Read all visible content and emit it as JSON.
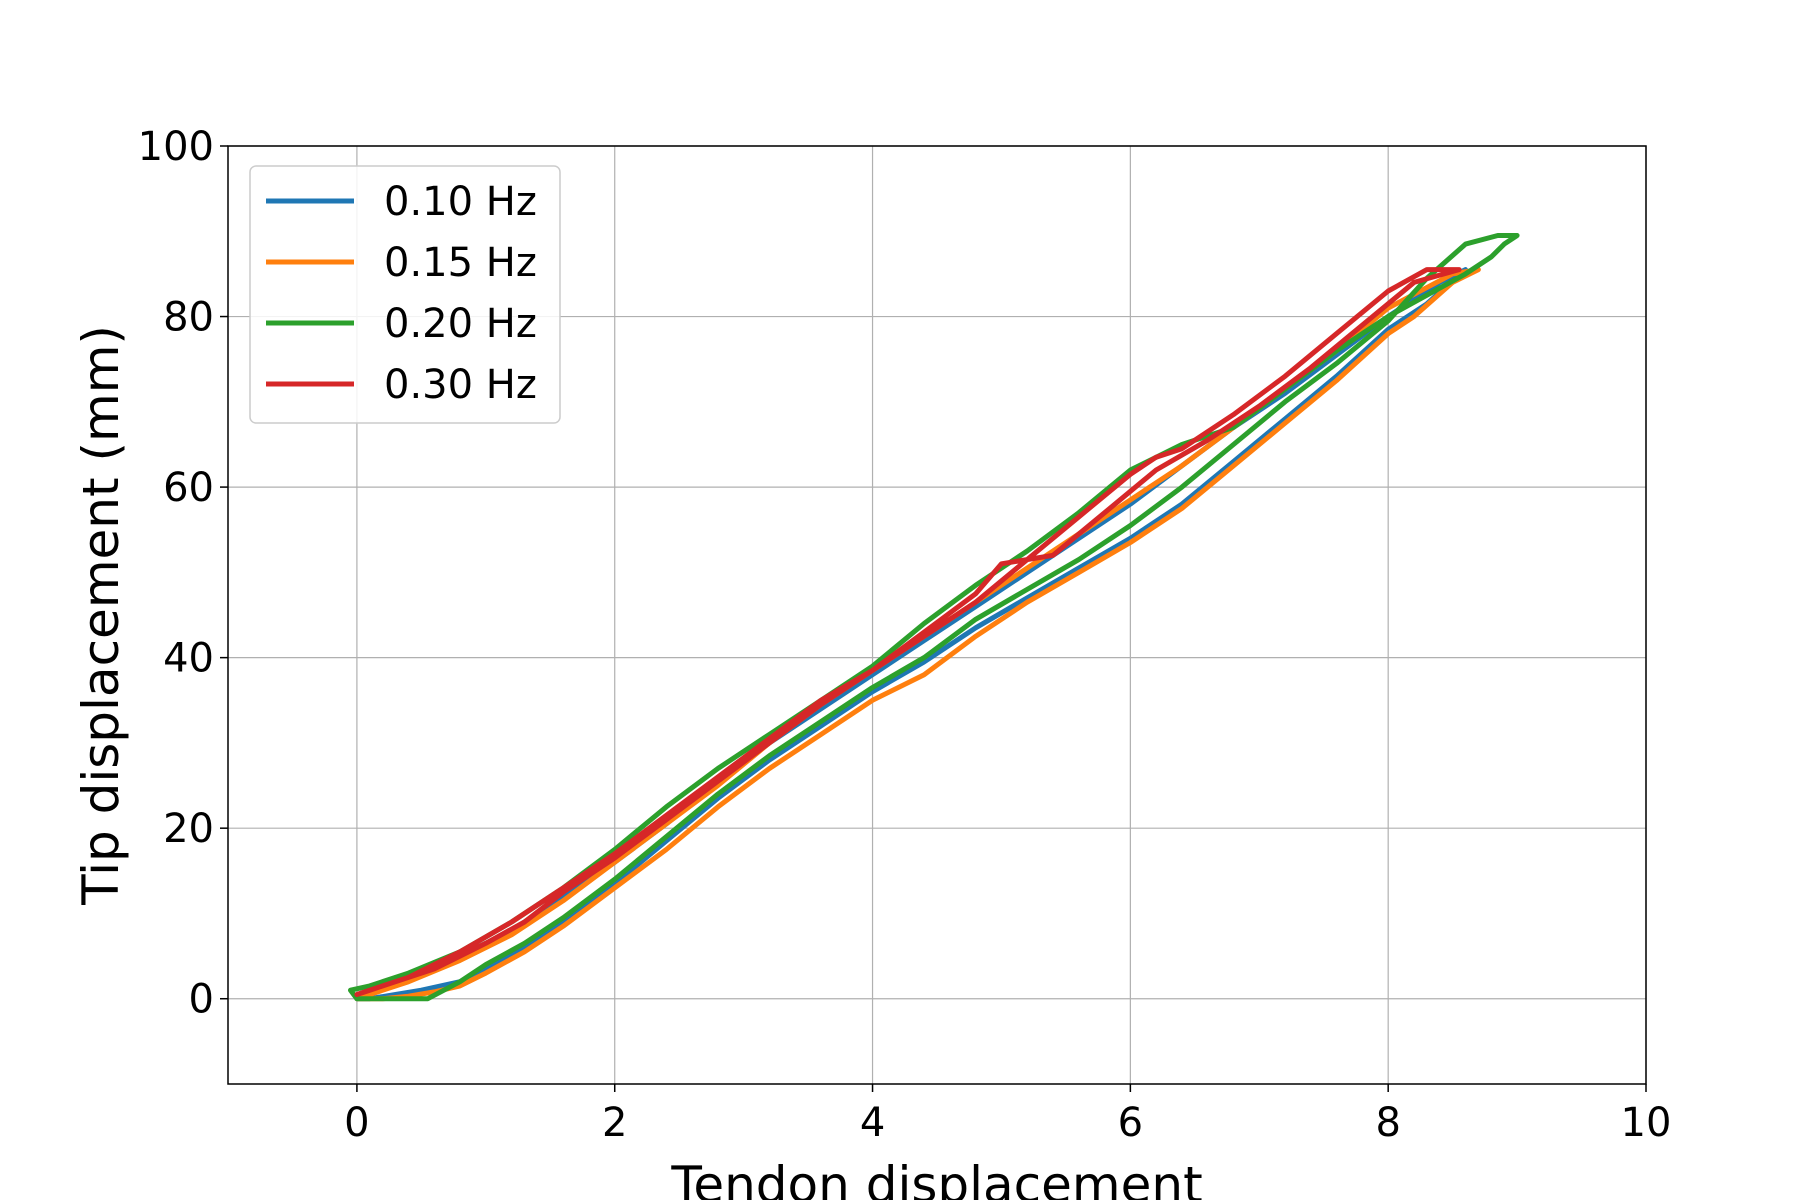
{
  "chart_data": {
    "type": "line",
    "title": "",
    "xlabel": "Tendon displacement",
    "ylabel": "Tip displacement (mm)",
    "xlim": [
      -1,
      10
    ],
    "ylim": [
      -10,
      100
    ],
    "xticks": [
      0,
      2,
      4,
      6,
      8,
      10
    ],
    "yticks": [
      0,
      20,
      40,
      60,
      80,
      100
    ],
    "grid": true,
    "legend_position": "top-left",
    "series": [
      {
        "name": "0.10 Hz",
        "color": "#1f77b4",
        "x": [
          0.0,
          0.1,
          0.3,
          0.5,
          0.8,
          1.0,
          1.3,
          1.6,
          2.0,
          2.4,
          2.8,
          3.2,
          3.6,
          4.0,
          4.4,
          4.8,
          5.2,
          5.6,
          6.0,
          6.4,
          6.8,
          7.2,
          7.6,
          8.0,
          8.3,
          8.6,
          8.4,
          8.0,
          7.6,
          7.2,
          6.8,
          6.4,
          6.0,
          5.6,
          5.2,
          4.8,
          4.4,
          4.0,
          3.6,
          3.2,
          2.8,
          2.4,
          2.0,
          1.6,
          1.2,
          0.8,
          0.4,
          0.1,
          0.0
        ],
        "y": [
          0.0,
          0.0,
          0.5,
          1.0,
          2.0,
          3.5,
          6.0,
          9.0,
          13.5,
          18.5,
          23.5,
          28.0,
          32.0,
          36.0,
          39.5,
          43.5,
          47.0,
          50.5,
          54.0,
          58.0,
          63.0,
          68.0,
          73.0,
          78.5,
          81.5,
          85.5,
          84.0,
          80.0,
          75.5,
          71.0,
          67.0,
          62.5,
          58.0,
          54.0,
          50.0,
          46.0,
          42.0,
          38.0,
          34.0,
          30.0,
          25.5,
          20.5,
          16.0,
          12.0,
          8.0,
          5.0,
          2.5,
          1.0,
          0.0
        ]
      },
      {
        "name": "0.15 Hz",
        "color": "#ff7f0e",
        "x": [
          0.0,
          0.2,
          0.4,
          0.6,
          0.8,
          1.0,
          1.3,
          1.6,
          2.0,
          2.4,
          2.8,
          3.2,
          3.6,
          4.0,
          4.4,
          4.8,
          5.2,
          5.6,
          6.0,
          6.4,
          6.8,
          7.2,
          7.6,
          8.0,
          8.2,
          8.5,
          8.7,
          8.5,
          8.0,
          7.6,
          7.2,
          6.8,
          6.4,
          6.0,
          5.6,
          5.2,
          4.8,
          4.4,
          4.0,
          3.6,
          3.2,
          2.8,
          2.4,
          2.0,
          1.6,
          1.2,
          0.8,
          0.4,
          0.1,
          0.0
        ],
        "y": [
          0.0,
          0.0,
          0.3,
          0.8,
          1.5,
          3.0,
          5.5,
          8.5,
          13.0,
          17.5,
          22.5,
          27.0,
          31.0,
          35.0,
          38.0,
          42.5,
          46.5,
          50.0,
          53.5,
          57.5,
          62.5,
          67.5,
          72.5,
          78.0,
          80.0,
          84.0,
          85.5,
          85.0,
          81.0,
          76.0,
          71.5,
          67.0,
          62.5,
          58.5,
          54.5,
          50.5,
          46.5,
          42.5,
          38.5,
          34.5,
          30.0,
          25.0,
          20.5,
          16.0,
          11.5,
          7.5,
          4.5,
          2.0,
          0.5,
          0.0
        ]
      },
      {
        "name": "0.20 Hz",
        "color": "#2ca02c",
        "x": [
          -0.05,
          0.0,
          0.2,
          0.4,
          0.55,
          0.8,
          1.0,
          1.3,
          1.6,
          2.0,
          2.4,
          2.8,
          3.2,
          3.6,
          4.0,
          4.4,
          4.8,
          5.2,
          5.6,
          6.0,
          6.4,
          6.8,
          7.2,
          7.6,
          8.0,
          8.3,
          8.6,
          8.85,
          9.0,
          8.9,
          8.8,
          8.6,
          8.3,
          8.0,
          7.6,
          7.2,
          6.8,
          6.4,
          6.0,
          5.6,
          5.2,
          4.8,
          4.4,
          4.0,
          3.6,
          3.2,
          2.8,
          2.4,
          2.0,
          1.6,
          1.2,
          0.8,
          0.4,
          0.1,
          -0.05
        ],
        "y": [
          1.0,
          0.0,
          0.0,
          0.0,
          0.0,
          2.0,
          4.0,
          6.5,
          9.5,
          14.0,
          19.0,
          24.0,
          28.5,
          32.5,
          36.5,
          40.0,
          44.5,
          48.0,
          51.5,
          55.5,
          60.0,
          65.0,
          70.0,
          74.5,
          79.5,
          84.5,
          88.5,
          89.5,
          89.5,
          88.5,
          87.0,
          85.0,
          82.5,
          80.0,
          76.0,
          71.5,
          67.0,
          65.0,
          62.0,
          57.0,
          52.5,
          48.5,
          44.0,
          39.0,
          35.0,
          31.0,
          27.0,
          22.5,
          17.5,
          13.0,
          9.0,
          5.5,
          3.0,
          1.5,
          1.0
        ]
      },
      {
        "name": "0.30 Hz",
        "color": "#d62728",
        "x": [
          0.0,
          0.2,
          0.4,
          0.6,
          0.8,
          1.0,
          1.3,
          1.6,
          2.0,
          2.4,
          2.8,
          3.2,
          3.6,
          4.0,
          4.4,
          4.8,
          5.0,
          5.4,
          5.8,
          6.2,
          6.6,
          7.0,
          7.4,
          7.8,
          8.2,
          8.55,
          8.3,
          8.0,
          7.6,
          7.2,
          6.8,
          6.4,
          6.2,
          6.0,
          5.6,
          5.2,
          4.8,
          4.4,
          4.0,
          3.6,
          3.2,
          2.8,
          2.4,
          2.0,
          1.6,
          1.2,
          0.8,
          0.4,
          0.1,
          0.0
        ],
        "y": [
          0.5,
          1.5,
          2.5,
          3.5,
          5.0,
          6.5,
          9.0,
          12.5,
          16.5,
          21.0,
          25.5,
          30.0,
          34.5,
          38.5,
          43.0,
          47.5,
          51.0,
          52.0,
          57.0,
          62.0,
          65.5,
          69.5,
          74.0,
          79.0,
          84.0,
          85.5,
          85.5,
          83.0,
          78.0,
          73.0,
          68.5,
          64.5,
          63.5,
          61.5,
          56.5,
          51.5,
          46.5,
          42.5,
          38.5,
          35.0,
          30.5,
          26.0,
          21.5,
          17.0,
          13.0,
          9.0,
          5.5,
          2.5,
          1.0,
          0.5
        ]
      }
    ]
  }
}
